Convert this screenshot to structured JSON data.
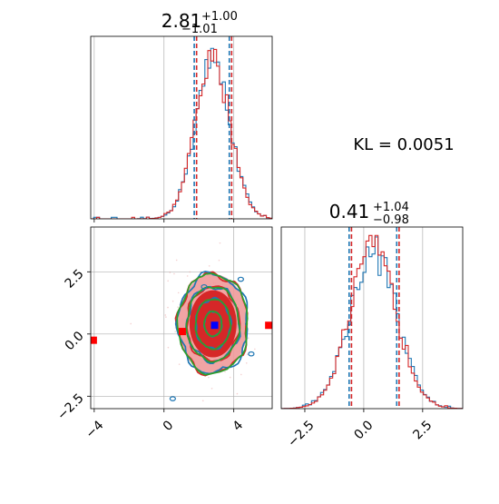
{
  "figure": {
    "kl_label": "KL = 0.0051",
    "colors": {
      "blue": "#1f77b4",
      "red": "#d62728",
      "green": "#2ca02c",
      "marker_red": "#ff0000",
      "marker_blue": "#0000ff",
      "grid": "#b0b0b0",
      "fill_light": "#f09a9a",
      "fill_dark": "#d62728"
    }
  },
  "chart_data": [
    {
      "type": "histogram",
      "panel": "top-left",
      "parameter_index": 0,
      "title_value": "2.81",
      "title_plus": "+1.00",
      "title_minus": "−1.01",
      "xlim": [
        -4.2,
        6.2
      ],
      "x_ticks": [
        -4,
        0,
        4
      ],
      "x_tick_labels_shown": false,
      "grid": true,
      "quantile_lines": [
        1.8,
        3.81
      ],
      "series": [
        {
          "name": "",
          "color": "blue",
          "peak_x": 2.8,
          "sigma": 1.0,
          "shape": "step-histogram"
        },
        {
          "name": "",
          "color": "red",
          "peak_x": 2.8,
          "sigma": 1.0,
          "shape": "step-histogram"
        }
      ]
    },
    {
      "type": "histogram",
      "panel": "bottom-right",
      "parameter_index": 1,
      "title_value": "0.41",
      "title_plus": "+1.04",
      "title_minus": "−0.98",
      "xlim": [
        -3.5,
        4.2
      ],
      "x_ticks": [
        -2.5,
        0.0,
        2.5
      ],
      "x_tick_labels": [
        "−2.5",
        "0.0",
        "2.5"
      ],
      "grid": true,
      "quantile_lines": [
        -0.57,
        1.45
      ],
      "series": [
        {
          "name": "",
          "color": "blue",
          "peak_x": 0.4,
          "sigma": 1.0,
          "shape": "step-histogram"
        },
        {
          "name": "",
          "color": "red",
          "peak_x": 0.4,
          "sigma": 1.0,
          "shape": "step-histogram"
        }
      ]
    },
    {
      "type": "contour",
      "panel": "bottom-left",
      "xlim": [
        -4.2,
        6.2
      ],
      "ylim": [
        -3.0,
        4.3
      ],
      "x_ticks": [
        -4,
        0,
        4
      ],
      "x_tick_labels": [
        "−4",
        "0",
        "4"
      ],
      "y_ticks": [
        -2.5,
        0.0,
        2.5
      ],
      "y_tick_labels": [
        "−2.5",
        "0.0",
        "2.5"
      ],
      "grid": true,
      "center": [
        2.81,
        0.41
      ],
      "markers": [
        {
          "x": 2.9,
          "y": 0.35,
          "color": "marker_blue",
          "label": ""
        },
        {
          "x": -4.05,
          "y": -0.25,
          "color": "marker_red",
          "label": ""
        },
        {
          "x": 6.0,
          "y": 0.35,
          "color": "marker_red",
          "label": ""
        },
        {
          "x": 1.05,
          "y": 0.1,
          "color": "marker_red",
          "label": ""
        }
      ],
      "contour_levels": [
        {
          "sigma_x": 0.5,
          "sigma_y": 0.5,
          "colors": [
            "red",
            "blue",
            "green"
          ]
        },
        {
          "sigma_x": 1.0,
          "sigma_y": 1.0,
          "colors": [
            "red",
            "blue",
            "green"
          ]
        },
        {
          "sigma_x": 1.5,
          "sigma_y": 1.5,
          "colors": [
            "red",
            "blue",
            "green"
          ]
        },
        {
          "sigma_x": 2.0,
          "sigma_y": 2.0,
          "colors": [
            "red",
            "blue",
            "green"
          ]
        }
      ]
    }
  ]
}
